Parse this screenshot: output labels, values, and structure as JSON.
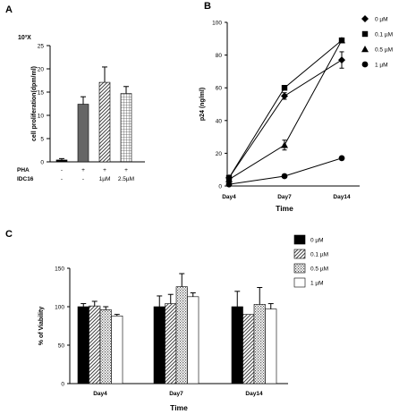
{
  "chart_data": [
    {
      "panel": "A",
      "type": "bar",
      "ylabel": "cell proliferation(dpm/ml)",
      "y_multiplier": "10³X",
      "yticks": [
        0,
        5,
        10,
        15,
        20,
        25
      ],
      "ylim": [
        0,
        25
      ],
      "bars": [
        {
          "value": 0.4,
          "error": 0.3,
          "fill": "#000000",
          "pattern": "solid"
        },
        {
          "value": 12.4,
          "error": 1.6,
          "fill": "#666666",
          "pattern": "solid"
        },
        {
          "value": 17.1,
          "error": 3.3,
          "fill": "#ffffff",
          "pattern": "diagonal"
        },
        {
          "value": 14.7,
          "error": 1.5,
          "fill": "#ffffff",
          "pattern": "grid"
        }
      ],
      "condition_rows": [
        {
          "label": "PHA",
          "values": [
            "-",
            "+",
            "+",
            "+"
          ]
        },
        {
          "label": "IDC16",
          "values": [
            "-",
            "-",
            "1µM",
            "2.5µM"
          ]
        }
      ]
    },
    {
      "panel": "B",
      "type": "line",
      "ylabel": "p24 (ng/ml)",
      "xlabel": "Time",
      "categories": [
        "Day4",
        "Day7",
        "Day14"
      ],
      "yticks": [
        0,
        20,
        40,
        60,
        80,
        100
      ],
      "ylim": [
        0,
        100
      ],
      "series": [
        {
          "name": "0  µM",
          "marker": "diamond",
          "values": [
            5,
            55,
            77
          ],
          "errors": [
            0,
            2,
            5
          ]
        },
        {
          "name": "0.1  µM",
          "marker": "square",
          "values": [
            5,
            60,
            89
          ],
          "errors": [
            0,
            1,
            1
          ]
        },
        {
          "name": "0.5  µM",
          "marker": "triangle",
          "values": [
            4,
            25,
            89
          ],
          "errors": [
            0,
            3,
            1
          ]
        },
        {
          "name": "1  µM",
          "marker": "circle",
          "values": [
            1,
            6,
            17
          ],
          "errors": [
            0,
            1,
            1
          ]
        }
      ]
    },
    {
      "panel": "C",
      "type": "bar",
      "ylabel": "% of Viability",
      "xlabel": "Time",
      "categories": [
        "Day4",
        "Day7",
        "Day14"
      ],
      "yticks": [
        0,
        50,
        100,
        150
      ],
      "ylim": [
        0,
        150
      ],
      "series": [
        {
          "name": "0  µM",
          "pattern": "solid",
          "values": [
            100,
            100,
            100
          ],
          "errors": [
            4,
            14,
            20
          ]
        },
        {
          "name": "0.1  µM",
          "pattern": "diagonal",
          "values": [
            101,
            104,
            90
          ],
          "errors": [
            6,
            12,
            0
          ]
        },
        {
          "name": "0.5  µM",
          "pattern": "dots",
          "values": [
            96,
            126,
            103
          ],
          "errors": [
            4,
            17,
            22
          ]
        },
        {
          "name": "1  µM",
          "pattern": "empty",
          "values": [
            88,
            113,
            97
          ],
          "errors": [
            2,
            5,
            7
          ]
        }
      ]
    }
  ]
}
